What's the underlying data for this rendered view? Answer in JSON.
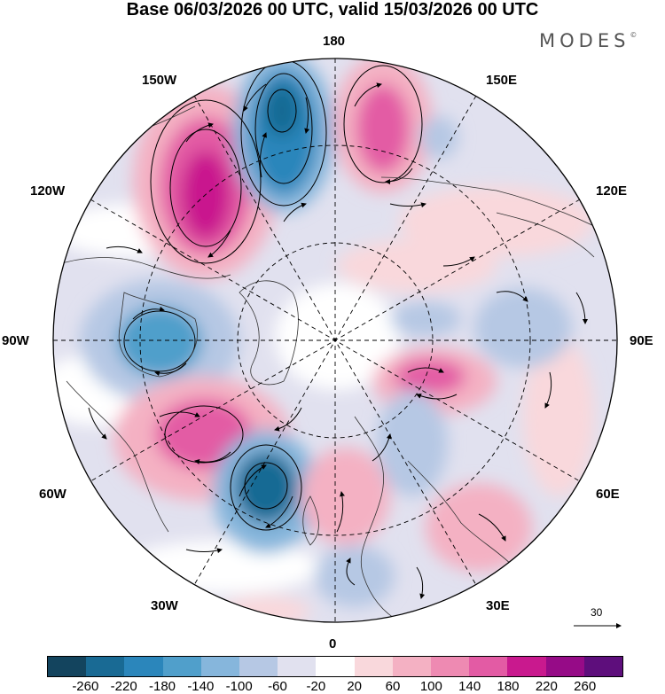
{
  "title": "Base 06/03/2026 00 UTC, valid 15/03/2026 00 UTC",
  "brand": "MODES",
  "brand_mark": "©",
  "longitude_labels": {
    "top": "180",
    "bottom": "0",
    "left": "90W",
    "right": "90E",
    "upper_left_1": "150W",
    "upper_left_2": "120W",
    "lower_left_1": "60W",
    "lower_left_2": "30W",
    "upper_right_1": "150E",
    "upper_right_2": "120E",
    "lower_right_1": "60E",
    "lower_right_2": "30E"
  },
  "reference_vector": {
    "label": "30"
  },
  "colorbar": {
    "colors": [
      "#13445e",
      "#196a94",
      "#2b86bb",
      "#509fcb",
      "#86b6dc",
      "#b6c8e4",
      "#e1e1ef",
      "#ffffff",
      "#f9d8dc",
      "#f4b1c3",
      "#ee8ab2",
      "#e35ba4",
      "#c9198e",
      "#960b87",
      "#5e0e7c"
    ],
    "ticks": [
      "-260",
      "-220",
      "-180",
      "-140",
      "-100",
      "-60",
      "-20",
      "20",
      "60",
      "100",
      "140",
      "180",
      "220",
      "260"
    ]
  },
  "anomalies": [
    {
      "name": "neg-aleutian-north",
      "value": -250
    },
    {
      "name": "pos-alaska",
      "value": 230
    },
    {
      "name": "pos-bering",
      "value": 160
    },
    {
      "name": "neg-hudson",
      "value": -170
    },
    {
      "name": "pos-newfoundland",
      "value": 200
    },
    {
      "name": "neg-north-atlantic",
      "value": -220
    },
    {
      "name": "pos-greenland-sea",
      "value": 140
    },
    {
      "name": "pos-west-siberia",
      "value": 130
    },
    {
      "name": "pos-black-sea",
      "value": 110
    },
    {
      "name": "neg-europe",
      "value": -100
    }
  ]
}
